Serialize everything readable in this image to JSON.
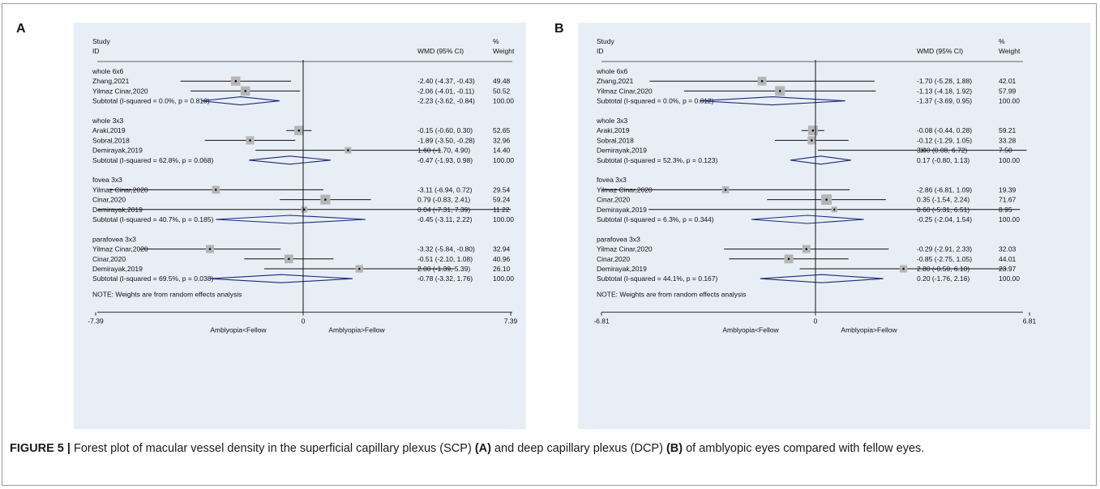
{
  "caption": {
    "prefix": "FIGURE 5 |",
    "text_1": " Forest plot of macular vessel density in the superficial capillary plexus (SCP) ",
    "label_a": "(A)",
    "text_2": " and deep capillary plexus (DCP) ",
    "label_b": "(B)",
    "text_3": " of amblyopic eyes compared with fellow eyes."
  },
  "chart_data": [
    {
      "type": "forest",
      "panel": "A",
      "header": {
        "study": "Study",
        "id": "ID",
        "wmd": "WMD (95% CI)",
        "pct": "%",
        "weight": "Weight"
      },
      "xlim": [
        -7.39,
        7.39
      ],
      "xticks": [
        "-7.39",
        "0",
        "7.39"
      ],
      "xlabel_left": "Amblyopia<Fellow",
      "xlabel_right": "Amblyopia>Fellow",
      "note": "NOTE: Weights are from random effects analysis",
      "groups": [
        {
          "name": "whole 6x6",
          "studies": [
            {
              "study": "Zhang,2021",
              "est": -2.4,
              "lo": -4.37,
              "hi": -0.43,
              "ci": "-2.40 (-4.37, -0.43)",
              "weight": "49.48",
              "w": 49.48
            },
            {
              "study": "Yilmaz Cinar,2020",
              "est": -2.06,
              "lo": -4.01,
              "hi": -0.11,
              "ci": "-2.06 (-4.01, -0.11)",
              "weight": "50.52",
              "w": 50.52
            }
          ],
          "subtotal": {
            "label": "Subtotal  (I-squared = 0.0%, p = 0.810)",
            "est": -2.23,
            "lo": -3.62,
            "hi": -0.84,
            "ci": "-2.23 (-3.62, -0.84)",
            "weight": "100.00"
          }
        },
        {
          "name": "whole 3x3",
          "studies": [
            {
              "study": "Araki,2019",
              "est": -0.15,
              "lo": -0.6,
              "hi": 0.3,
              "ci": "-0.15 (-0.60, 0.30)",
              "weight": "52.65",
              "w": 52.65
            },
            {
              "study": "Sobral,2018",
              "est": -1.89,
              "lo": -3.5,
              "hi": -0.28,
              "ci": "-1.89 (-3.50, -0.28)",
              "weight": "32.96",
              "w": 32.96
            },
            {
              "study": "Demirayak,2019",
              "est": 1.6,
              "lo": -1.7,
              "hi": 4.9,
              "ci": "1.60 (-1.70, 4.90)",
              "weight": "14.40",
              "w": 14.4
            }
          ],
          "subtotal": {
            "label": "Subtotal  (I-squared = 62.8%, p = 0.068)",
            "est": -0.47,
            "lo": -1.93,
            "hi": 0.98,
            "ci": "-0.47 (-1.93, 0.98)",
            "weight": "100.00"
          }
        },
        {
          "name": "fovea 3x3",
          "studies": [
            {
              "study": "Yilmaz Cinar,2020",
              "est": -3.11,
              "lo": -6.94,
              "hi": 0.72,
              "ci": "-3.11 (-6.94, 0.72)",
              "weight": "29.54",
              "w": 29.54
            },
            {
              "study": "Cinar,2020",
              "est": 0.79,
              "lo": -0.83,
              "hi": 2.41,
              "ci": "0.79 (-0.83, 2.41)",
              "weight": "59.24",
              "w": 59.24
            },
            {
              "study": "Demirayak,2019",
              "est": 0.04,
              "lo": -7.31,
              "hi": 7.39,
              "ci": "0.04 (-7.31, 7.39)",
              "weight": "11.22",
              "w": 11.22
            }
          ],
          "subtotal": {
            "label": "Subtotal  (I-squared = 40.7%, p = 0.185)",
            "est": -0.45,
            "lo": -3.11,
            "hi": 2.22,
            "ci": "-0.45 (-3.11, 2.22)",
            "weight": "100.00"
          }
        },
        {
          "name": "parafovea 3x3",
          "studies": [
            {
              "study": "Yilmaz Cinar,2020",
              "est": -3.32,
              "lo": -5.84,
              "hi": -0.8,
              "ci": "-3.32 (-5.84, -0.80)",
              "weight": "32.94",
              "w": 32.94
            },
            {
              "study": "Cinar,2020",
              "est": -0.51,
              "lo": -2.1,
              "hi": 1.08,
              "ci": "-0.51 (-2.10, 1.08)",
              "weight": "40.96",
              "w": 40.96
            },
            {
              "study": "Demirayak,2019",
              "est": 2.0,
              "lo": -1.39,
              "hi": 5.39,
              "ci": "2.00 (-1.39, 5.39)",
              "weight": "26.10",
              "w": 26.1
            }
          ],
          "subtotal": {
            "label": "Subtotal  (I-squared = 69.5%, p = 0.038)",
            "est": -0.78,
            "lo": -3.32,
            "hi": 1.76,
            "ci": "-0.78 (-3.32, 1.76)",
            "weight": "100.00"
          }
        }
      ]
    },
    {
      "type": "forest",
      "panel": "B",
      "header": {
        "study": "Study",
        "id": "ID",
        "wmd": "WMD (95% CI)",
        "pct": "%",
        "weight": "Weight"
      },
      "xlim": [
        -6.81,
        6.81
      ],
      "xticks": [
        "-6.81",
        "0",
        "6.81"
      ],
      "xlabel_left": "Amblyopia<Fellow",
      "xlabel_right": "Amblyopia>Fellow",
      "note": "NOTE: Weights are from random effects analysis",
      "groups": [
        {
          "name": "whole 6x6",
          "studies": [
            {
              "study": "Zhang,2021",
              "est": -1.7,
              "lo": -5.28,
              "hi": 1.88,
              "ci": "-1.70 (-5.28, 1.88)",
              "weight": "42.01",
              "w": 42.01
            },
            {
              "study": "Yilmaz Cinar,2020",
              "est": -1.13,
              "lo": -4.18,
              "hi": 1.92,
              "ci": "-1.13 (-4.18, 1.92)",
              "weight": "57.99",
              "w": 57.99
            }
          ],
          "subtotal": {
            "label": "Subtotal  (I-squared = 0.0%, p = 0.812)",
            "est": -1.37,
            "lo": -3.69,
            "hi": 0.95,
            "ci": "-1.37 (-3.69, 0.95)",
            "weight": "100.00"
          }
        },
        {
          "name": "whole 3x3",
          "studies": [
            {
              "study": "Araki,2019",
              "est": -0.08,
              "lo": -0.44,
              "hi": 0.28,
              "ci": "-0.08 (-0.44, 0.28)",
              "weight": "59.21",
              "w": 59.21
            },
            {
              "study": "Sobral,2018",
              "est": -0.12,
              "lo": -1.29,
              "hi": 1.05,
              "ci": "-0.12 (-1.29, 1.05)",
              "weight": "33.28",
              "w": 33.28
            },
            {
              "study": "Demirayak,2019",
              "est": 3.4,
              "lo": 0.08,
              "hi": 6.72,
              "ci": "3.40 (0.08, 6.72)",
              "weight": "7.50",
              "w": 7.5
            }
          ],
          "subtotal": {
            "label": "Subtotal  (I-squared = 52.3%, p = 0.123)",
            "est": 0.17,
            "lo": -0.8,
            "hi": 1.13,
            "ci": "0.17 (-0.80, 1.13)",
            "weight": "100.00"
          }
        },
        {
          "name": "fovea 3x3",
          "studies": [
            {
              "study": "Yilmaz Cinar,2020",
              "est": -2.86,
              "lo": -6.81,
              "hi": 1.09,
              "ci": "-2.86 (-6.81, 1.09)",
              "weight": "19.39",
              "w": 19.39
            },
            {
              "study": "Cinar,2020",
              "est": 0.35,
              "lo": -1.54,
              "hi": 2.24,
              "ci": "0.35 (-1.54, 2.24)",
              "weight": "71.67",
              "w": 71.67
            },
            {
              "study": "Demirayak,2019",
              "est": 0.6,
              "lo": -5.31,
              "hi": 6.51,
              "ci": "0.60 (-5.31, 6.51)",
              "weight": "8.95",
              "w": 8.95
            }
          ],
          "subtotal": {
            "label": "Subtotal  (I-squared = 6.3%, p = 0.344)",
            "est": -0.25,
            "lo": -2.04,
            "hi": 1.54,
            "ci": "-0.25 (-2.04, 1.54)",
            "weight": "100.00"
          }
        },
        {
          "name": "parafovea 3x3",
          "studies": [
            {
              "study": "Yilmaz Cinar,2020",
              "est": -0.29,
              "lo": -2.91,
              "hi": 2.33,
              "ci": "-0.29 (-2.91, 2.33)",
              "weight": "32.03",
              "w": 32.03
            },
            {
              "study": "Cinar,2020",
              "est": -0.85,
              "lo": -2.75,
              "hi": 1.05,
              "ci": "-0.85 (-2.75, 1.05)",
              "weight": "44.01",
              "w": 44.01
            },
            {
              "study": "Demirayak,2019",
              "est": 2.8,
              "lo": -0.5,
              "hi": 6.1,
              "ci": "2.80 (-0.50, 6.10)",
              "weight": "23.97",
              "w": 23.97
            }
          ],
          "subtotal": {
            "label": "Subtotal  (I-squared = 44.1%, p = 0.167)",
            "est": 0.2,
            "lo": -1.76,
            "hi": 2.16,
            "ci": "0.20 (-1.76, 2.16)",
            "weight": "100.00"
          }
        }
      ]
    }
  ]
}
